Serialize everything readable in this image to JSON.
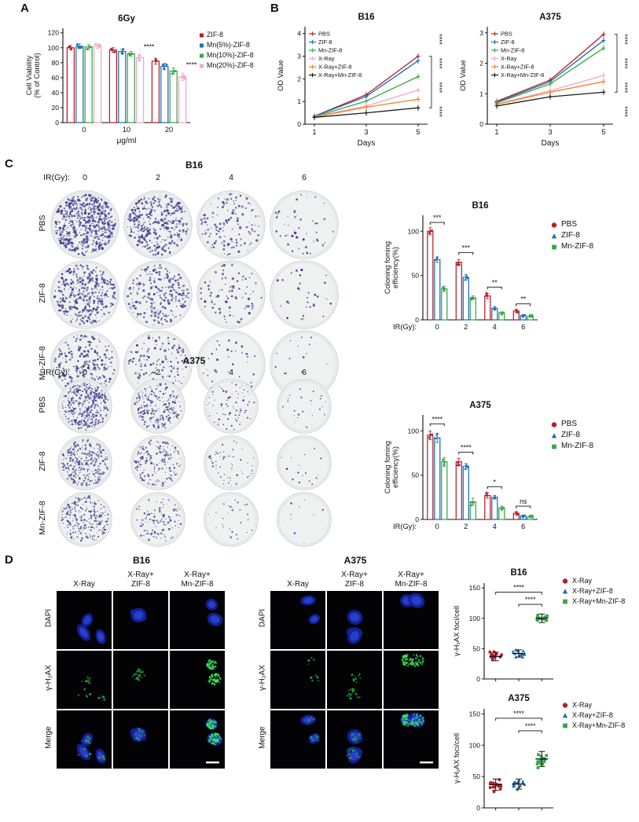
{
  "panel_labels": {
    "a": "A",
    "b": "B",
    "c": "C",
    "d": "D"
  },
  "colors": {
    "red": "#b5202a",
    "blue": "#1f6cb5",
    "green": "#37a649",
    "pink": "#f0a6c6",
    "orange": "#f08127",
    "black": "#1b1b1b",
    "colony_dot": "#433e8e",
    "dapi_blue": "#13219a",
    "foci_green": "#3be457"
  },
  "chart_data": [
    {
      "id": "A",
      "type": "bar",
      "title": "6Gy",
      "ylabel": "Cell Viability\n(% of Control)",
      "xlabel": "μg/ml",
      "categories": [
        "0",
        "10",
        "20"
      ],
      "ylim": [
        0,
        126
      ],
      "yticks": [
        0,
        20,
        40,
        60,
        80,
        100,
        120
      ],
      "series": [
        {
          "name": "ZIF-8",
          "color": "#b5202a",
          "values": [
            100,
            97,
            82
          ],
          "errors": [
            3,
            3,
            4
          ]
        },
        {
          "name": "Mn(5%)-ZIF-8",
          "color": "#1f6cb5",
          "values": [
            102,
            95,
            75
          ],
          "errors": [
            3,
            3,
            4
          ]
        },
        {
          "name": "Mn(10%)-ZIF-8",
          "color": "#37a649",
          "values": [
            101,
            92,
            69
          ],
          "errors": [
            3,
            3,
            4
          ]
        },
        {
          "name": "Mn(20%)-ZIF-8",
          "color": "#f0a6c6",
          "values": [
            102,
            87,
            61
          ],
          "errors": [
            3,
            4,
            5
          ]
        }
      ],
      "sig": [
        {
          "cat": 1,
          "y": 98,
          "label": "****"
        },
        {
          "cat": 2,
          "y": 74,
          "label": "****"
        }
      ],
      "legend": "right"
    },
    {
      "id": "B_B16",
      "type": "line",
      "title": "B16",
      "ylabel": "OD Value",
      "xlabel": "Days",
      "x": [
        1,
        3,
        5
      ],
      "ylim": [
        0,
        4.3
      ],
      "yticks": [
        0,
        1,
        2,
        3,
        4
      ],
      "series": [
        {
          "name": "PBS",
          "color": "#b5202a",
          "values": [
            0.35,
            1.3,
            3.0
          ]
        },
        {
          "name": "ZIF-8",
          "color": "#1f6cb5",
          "values": [
            0.35,
            1.22,
            2.8
          ]
        },
        {
          "name": "Mn-ZIF-8",
          "color": "#37a649",
          "values": [
            0.33,
            1.02,
            2.1
          ]
        },
        {
          "name": "X-Ray",
          "color": "#f0a6c6",
          "values": [
            0.33,
            0.8,
            1.5
          ]
        },
        {
          "name": "X-Ray+ZIF-8",
          "color": "#f08127",
          "values": [
            0.32,
            0.75,
            1.1
          ]
        },
        {
          "name": "X-Ray+Mn-ZIF-8",
          "color": "#1b1b1b",
          "values": [
            0.3,
            0.5,
            0.72
          ]
        }
      ],
      "sig_stack": [
        "****",
        "****",
        "****",
        "****"
      ]
    },
    {
      "id": "B_A375",
      "type": "line",
      "title": "A375",
      "ylabel": "OD Value",
      "xlabel": "Days",
      "x": [
        1,
        3,
        5
      ],
      "ylim": [
        0,
        3.2
      ],
      "yticks": [
        0,
        1,
        2,
        3
      ],
      "series": [
        {
          "name": "PBS",
          "color": "#b5202a",
          "values": [
            0.75,
            1.45,
            2.95
          ]
        },
        {
          "name": "ZIF-8",
          "color": "#1f6cb5",
          "values": [
            0.72,
            1.4,
            2.75
          ]
        },
        {
          "name": "Mn-ZIF-8",
          "color": "#37a649",
          "values": [
            0.7,
            1.32,
            2.5
          ]
        },
        {
          "name": "X-Ray",
          "color": "#f0a6c6",
          "values": [
            0.66,
            1.1,
            1.6
          ]
        },
        {
          "name": "X-Ray+ZIF-8",
          "color": "#f08127",
          "values": [
            0.65,
            1.05,
            1.4
          ]
        },
        {
          "name": "X-Ray+Mn-ZIF-8",
          "color": "#1b1b1b",
          "values": [
            0.6,
            0.9,
            1.05
          ]
        }
      ],
      "sig_stack": [
        "****",
        "****",
        "****",
        "****"
      ]
    },
    {
      "id": "C_B16",
      "type": "bar",
      "title": "B16",
      "ylabel": "Coloning foming\nefficiency(%)",
      "xlabel": "IR(Gy):",
      "categories": [
        "0",
        "2",
        "4",
        "6"
      ],
      "ylim": [
        0,
        118
      ],
      "yticks": [
        0,
        50,
        100
      ],
      "series": [
        {
          "name": "PBS",
          "color": "#b5202a",
          "shape": "circle",
          "values": [
            100,
            65,
            27,
            10
          ],
          "errors": [
            4,
            3,
            3,
            2
          ]
        },
        {
          "name": "ZIF-8",
          "color": "#1f6cb5",
          "shape": "triangle",
          "values": [
            68,
            48,
            13,
            5
          ],
          "errors": [
            3,
            3,
            2,
            1
          ]
        },
        {
          "name": "Mn-ZIF-8",
          "color": "#37a649",
          "shape": "square",
          "values": [
            35,
            25,
            8,
            4
          ],
          "errors": [
            3,
            2,
            1,
            1
          ]
        }
      ],
      "sig": [
        {
          "cat": 0,
          "y": 110,
          "label": "***",
          "bracket": true
        },
        {
          "cat": 1,
          "y": 76,
          "label": "***",
          "bracket": true
        },
        {
          "cat": 2,
          "y": 37,
          "label": "**",
          "bracket": true
        },
        {
          "cat": 3,
          "y": 18,
          "label": "**",
          "bracket": true
        }
      ]
    },
    {
      "id": "C_A375",
      "type": "bar",
      "title": "A375",
      "ylabel": "Coloning foming\nefficiency(%)",
      "xlabel": "IR(Gy):",
      "categories": [
        "0",
        "2",
        "4",
        "6"
      ],
      "ylim": [
        0,
        118
      ],
      "yticks": [
        0,
        50,
        100
      ],
      "series": [
        {
          "name": "PBS",
          "color": "#b5202a",
          "shape": "circle",
          "values": [
            95,
            65,
            27,
            7
          ],
          "errors": [
            5,
            4,
            3,
            2
          ]
        },
        {
          "name": "ZIF-8",
          "color": "#1f6cb5",
          "shape": "triangle",
          "values": [
            92,
            60,
            25,
            4
          ],
          "errors": [
            5,
            3,
            2,
            1
          ]
        },
        {
          "name": "Mn-ZIF-8",
          "color": "#37a649",
          "shape": "square",
          "values": [
            65,
            20,
            13,
            3
          ],
          "errors": [
            5,
            4,
            2,
            1
          ]
        }
      ],
      "sig": [
        {
          "cat": 0,
          "y": 108,
          "label": "****",
          "bracket": true
        },
        {
          "cat": 1,
          "y": 76,
          "label": "****",
          "bracket": true
        },
        {
          "cat": 2,
          "y": 37,
          "label": "*",
          "bracket": true
        },
        {
          "cat": 3,
          "y": 15,
          "label": "ns",
          "bracket": true
        }
      ]
    },
    {
      "id": "D_B16",
      "type": "scatter",
      "title": "B16",
      "ylabel": "γ-H₂AX foci/cell",
      "ylim": [
        0,
        158
      ],
      "yticks": [
        0,
        50,
        100,
        150
      ],
      "groups": [
        {
          "name": "X-Ray",
          "color": "#b5202a",
          "shape": "circle",
          "mean": 37,
          "spread": 7,
          "n": 15
        },
        {
          "name": "X-Ray+ZIF-8",
          "color": "#1f6cb5",
          "shape": "triangle",
          "mean": 42,
          "spread": 6,
          "n": 15
        },
        {
          "name": "X-Ray+Mn-ZIF-8",
          "color": "#37a649",
          "shape": "square",
          "mean": 100,
          "spread": 7,
          "n": 15
        }
      ],
      "sig": [
        {
          "from": 0,
          "to": 2,
          "y": 143,
          "label": "****"
        },
        {
          "from": 1,
          "to": 2,
          "y": 123,
          "label": "****"
        }
      ]
    },
    {
      "id": "D_A375",
      "type": "scatter",
      "title": "A375",
      "ylabel": "γ-H₂AX foci/cell",
      "ylim": [
        0,
        158
      ],
      "yticks": [
        0,
        50,
        100,
        150
      ],
      "groups": [
        {
          "name": "X-Ray",
          "color": "#b5202a",
          "shape": "circle",
          "mean": 37,
          "spread": 9,
          "n": 16
        },
        {
          "name": "X-Ray+ZIF-8",
          "color": "#1f6cb5",
          "shape": "triangle",
          "mean": 38,
          "spread": 8,
          "n": 16
        },
        {
          "name": "X-Ray+Mn-ZIF-8",
          "color": "#37a649",
          "shape": "square",
          "mean": 78,
          "spread": 12,
          "n": 18
        }
      ],
      "sig": [
        {
          "from": 0,
          "to": 2,
          "y": 143,
          "label": "****"
        },
        {
          "from": 1,
          "to": 2,
          "y": 123,
          "label": "****"
        }
      ]
    }
  ],
  "colony": {
    "b16": {
      "title": "B16",
      "ir_label": "IR(Gy):",
      "doses": [
        "0",
        "2",
        "4",
        "6"
      ],
      "rows": [
        "PBS",
        "ZIF-8",
        "Mn-ZIF-8"
      ],
      "dot_counts": [
        [
          560,
          340,
          130,
          48
        ],
        [
          350,
          240,
          85,
          30
        ],
        [
          210,
          135,
          42,
          16
        ]
      ]
    },
    "a375": {
      "title": "A375",
      "ir_label": "IR(Gy):",
      "doses": [
        "0",
        "2",
        "4",
        "6"
      ],
      "rows": [
        "PBS",
        "ZIF-8",
        "Mn-ZIF-8"
      ],
      "dot_counts": [
        [
          400,
          250,
          80,
          26
        ],
        [
          330,
          190,
          55,
          18
        ],
        [
          240,
          110,
          28,
          9
        ]
      ]
    }
  },
  "micro": {
    "b16": {
      "title": "B16",
      "cols": [
        "X-Ray",
        "X-Ray+\nZIF-8",
        "X-Ray+\nMn-ZIF-8"
      ],
      "rows": [
        "DAPI",
        "γ-H₂AX",
        "Merge"
      ],
      "foci": [
        8,
        13,
        55
      ]
    },
    "a375": {
      "title": "A375",
      "cols": [
        "X-Ray",
        "X-Ray+\nZIF-8",
        "X-Ray+\nMn-ZIF-8"
      ],
      "rows": [
        "DAPI",
        "γ-H₂AX",
        "Merge"
      ],
      "foci": [
        6,
        9,
        42
      ]
    }
  }
}
